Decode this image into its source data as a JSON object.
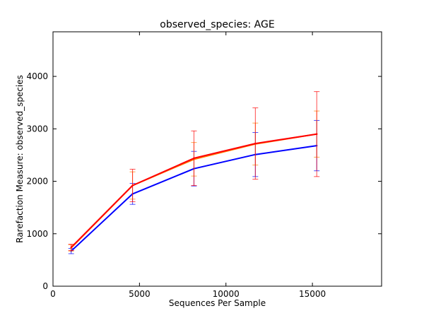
{
  "chart_data": {
    "type": "line",
    "title": "observed_species: AGE",
    "xlabel": "Sequences Per Sample",
    "ylabel": "Rarefaction Measure: observed_species",
    "xlim": [
      0,
      19000
    ],
    "ylim": [
      0,
      4850
    ],
    "x_ticks": [
      0,
      5000,
      10000,
      15000
    ],
    "x_tick_labels": [
      "0",
      "5000",
      "10000",
      "15000"
    ],
    "y_ticks": [
      0,
      1000,
      2000,
      3000,
      4000
    ],
    "y_tick_labels": [
      "0",
      "1000",
      "2000",
      "3000",
      "4000"
    ],
    "grid": false,
    "legend": "none",
    "x": [
      1050,
      4600,
      8150,
      11700,
      15250
    ],
    "series": [
      {
        "color": "#0000ff",
        "values": [
          670,
          1760,
          2240,
          2510,
          2680
        ],
        "err": [
          50,
          200,
          330,
          420,
          480
        ]
      },
      {
        "color": "#ff8000",
        "values": [
          730,
          1920,
          2420,
          2710,
          2900
        ],
        "err": [
          60,
          260,
          320,
          400,
          440
        ]
      },
      {
        "color": "#ff0000",
        "values": [
          740,
          1920,
          2440,
          2720,
          2900
        ],
        "err": [
          60,
          310,
          520,
          680,
          810
        ]
      }
    ]
  }
}
